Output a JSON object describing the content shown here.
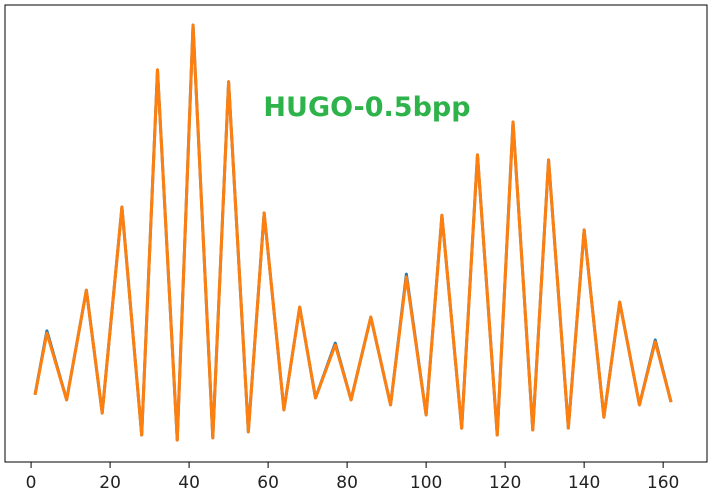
{
  "chart_data": {
    "type": "line",
    "annotation": "HUGO-0.5bpp",
    "annotation_color": "#2db34a",
    "x": [
      1,
      4,
      9,
      14,
      18,
      23,
      28,
      32,
      37,
      41,
      46,
      50,
      55,
      59,
      64,
      68,
      72,
      77,
      81,
      86,
      91,
      95,
      100,
      104,
      109,
      113,
      118,
      122,
      127,
      131,
      136,
      140,
      145,
      149,
      154,
      158,
      162
    ],
    "series": [
      {
        "color": "#1f77b4",
        "values": [
          14.7,
          28.7,
          13.6,
          37.6,
          10.7,
          55.8,
          5.9,
          85.8,
          4.8,
          95.6,
          5.3,
          83.2,
          6.6,
          54.5,
          11.4,
          33.9,
          14.0,
          26.0,
          13.6,
          31.7,
          12.5,
          41.1,
          10.3,
          54.0,
          7.4,
          67.2,
          5.9,
          74.4,
          7.0,
          66.1,
          7.4,
          50.8,
          9.8,
          35.0,
          12.5,
          26.7,
          13.1
        ]
      },
      {
        "color": "#ff7f0e",
        "values": [
          14.7,
          28.2,
          13.6,
          37.6,
          10.7,
          55.8,
          5.9,
          85.8,
          4.8,
          95.6,
          5.3,
          83.2,
          6.6,
          54.5,
          11.4,
          33.9,
          14.0,
          25.6,
          13.6,
          31.7,
          12.5,
          40.5,
          10.3,
          54.0,
          7.4,
          67.2,
          5.9,
          74.4,
          7.0,
          66.1,
          7.4,
          50.8,
          9.8,
          35.0,
          12.5,
          26.3,
          13.1
        ]
      }
    ],
    "xlim": [
      -6.6,
      171.1
    ],
    "xticks": [
      0,
      20,
      40,
      60,
      80,
      100,
      120,
      140,
      160
    ],
    "ylim": [
      0,
      100
    ]
  }
}
